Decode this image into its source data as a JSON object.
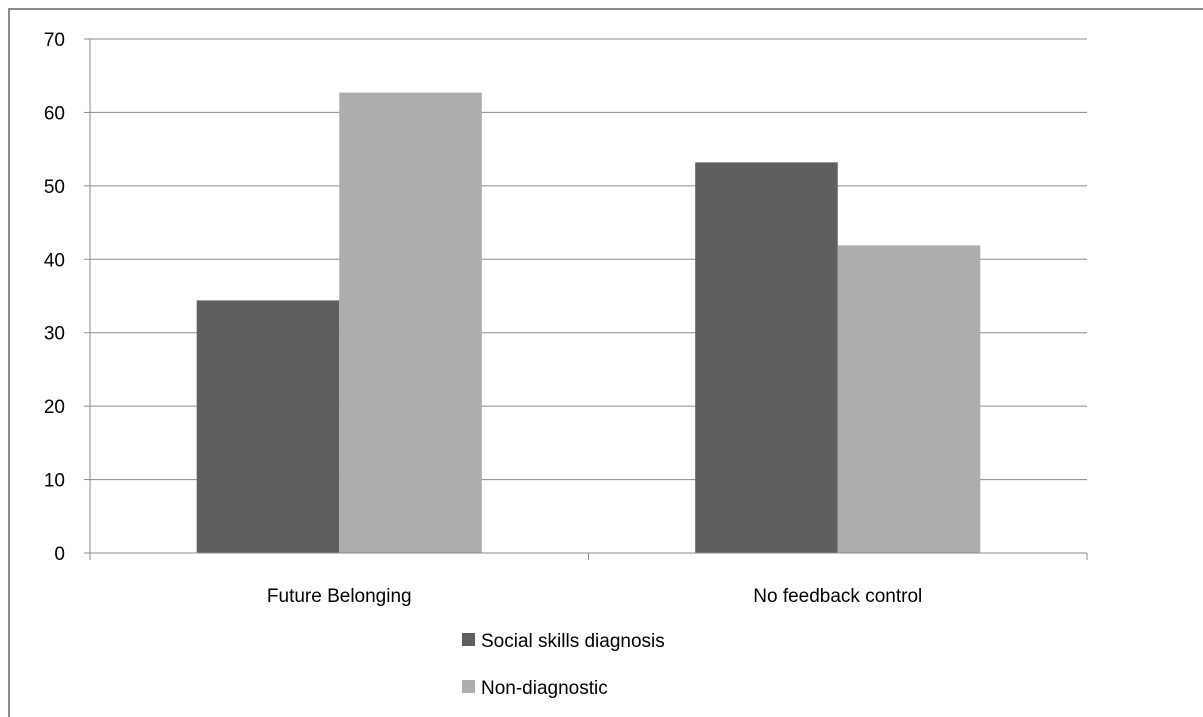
{
  "chart_data": {
    "type": "bar",
    "categories": [
      "Future Belonging",
      "No feedback control"
    ],
    "series": [
      {
        "name": "Social skills diagnosis",
        "values": [
          34.4,
          53.2
        ],
        "color": "#5f5f5f"
      },
      {
        "name": "Non-diagnostic",
        "values": [
          62.7,
          41.9
        ],
        "color": "#adadad"
      }
    ],
    "ylim": [
      0,
      70
    ],
    "yticks": [
      0,
      10,
      20,
      30,
      40,
      50,
      60,
      70
    ],
    "grid": true,
    "legend_position": "bottom"
  }
}
